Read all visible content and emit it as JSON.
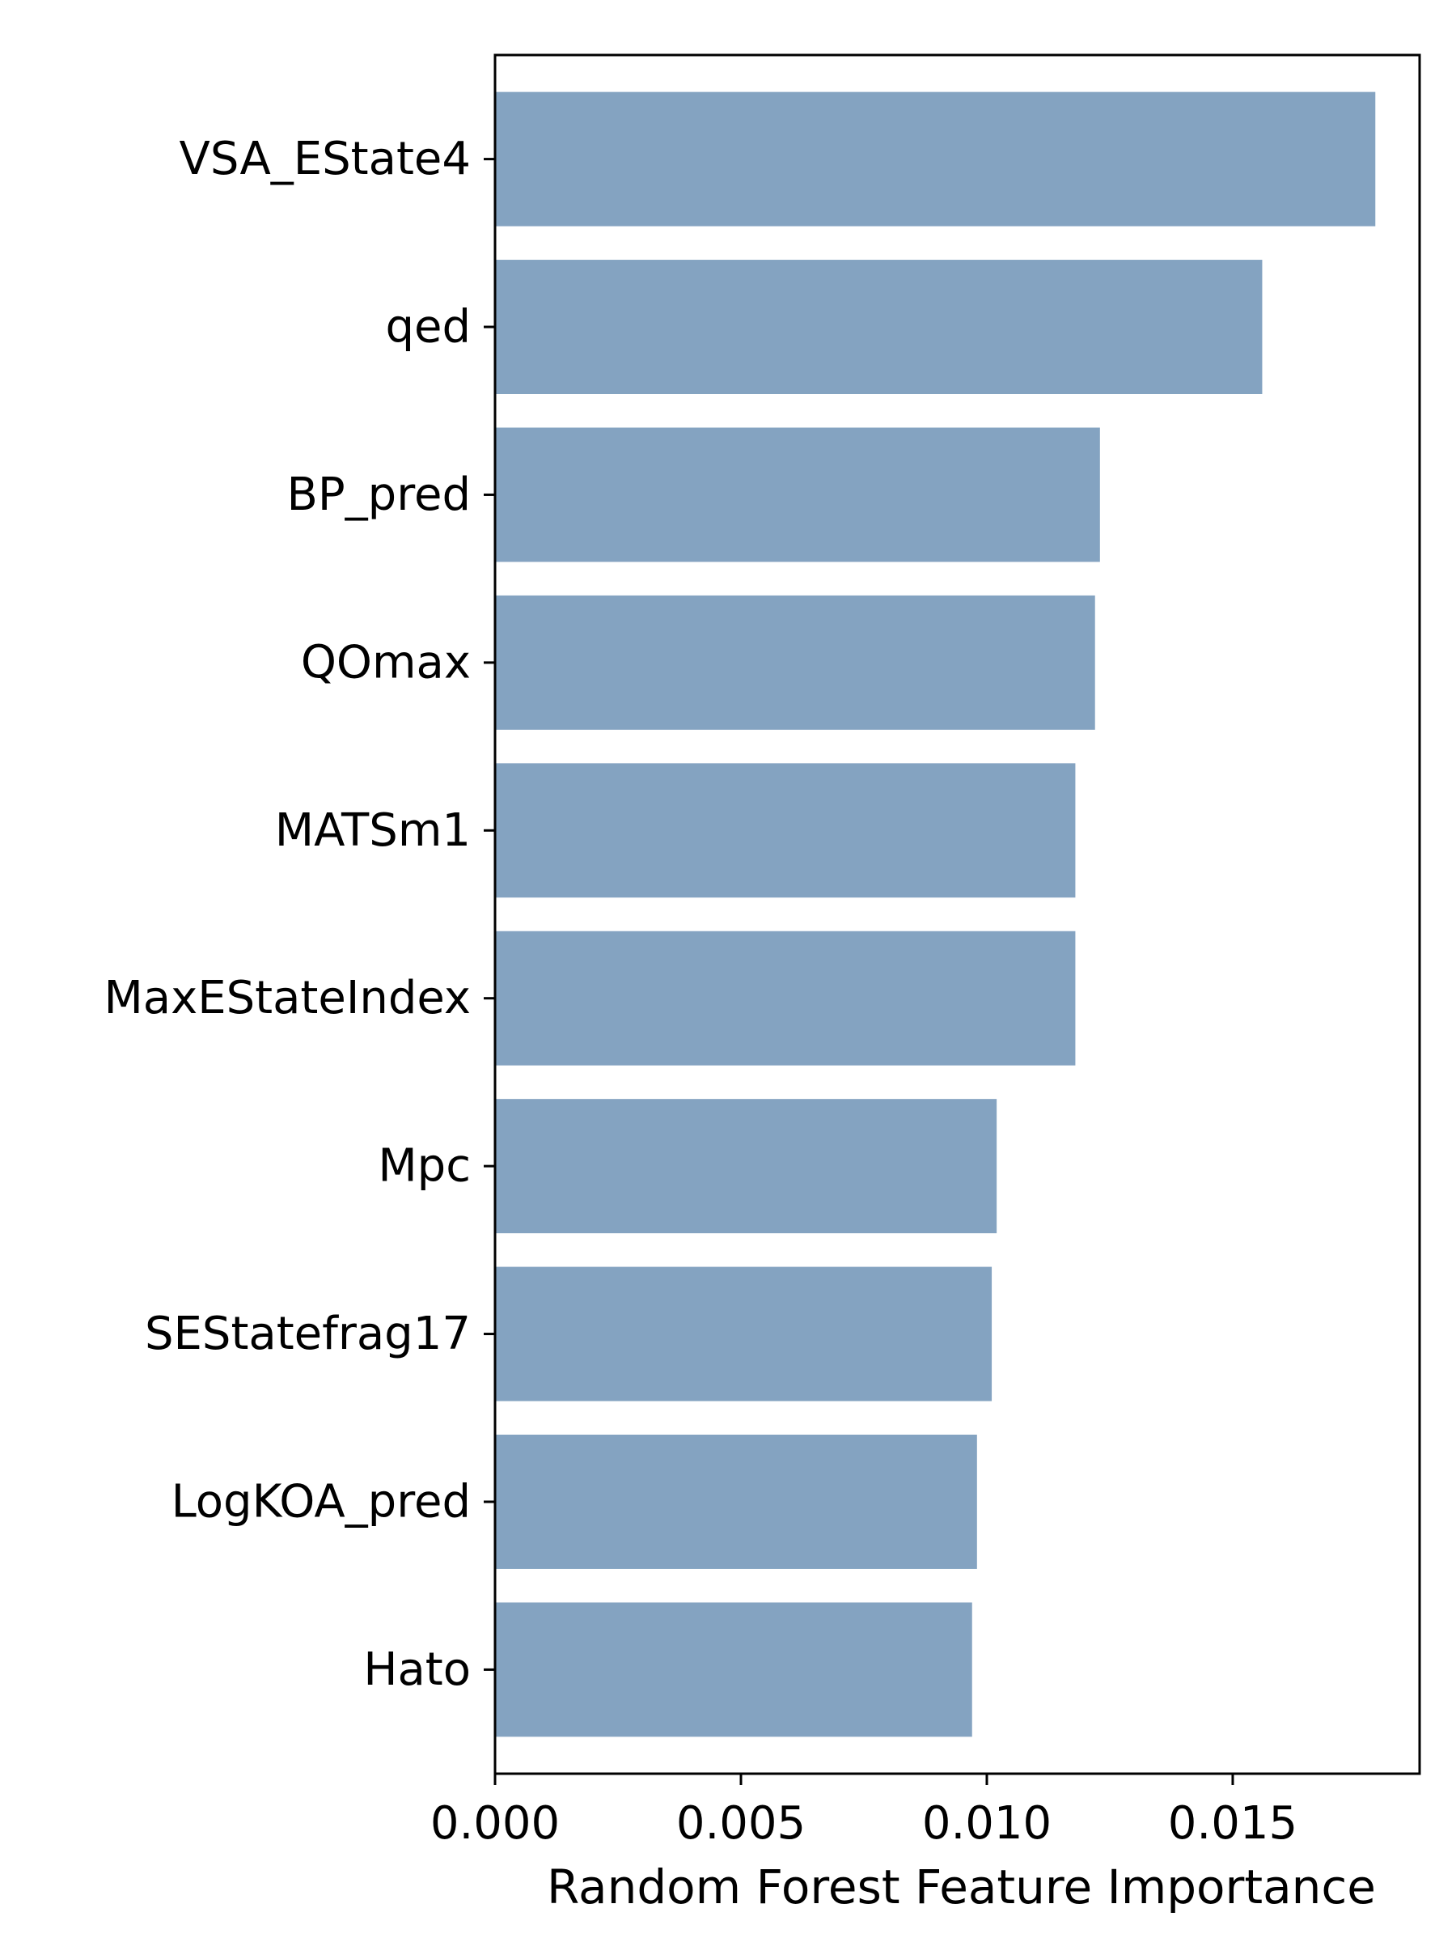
{
  "chart_data": {
    "type": "bar",
    "orientation": "horizontal",
    "title": "",
    "xlabel": "Random Forest Feature Importance",
    "ylabel": "",
    "categories": [
      "VSA_EState4",
      "qed",
      "BP_pred",
      "QOmax",
      "MATSm1",
      "MaxEStateIndex",
      "Mpc",
      "SEStatefrag17",
      "LogKOA_pred",
      "Hato"
    ],
    "values": [
      0.0179,
      0.0156,
      0.0123,
      0.0122,
      0.0118,
      0.0118,
      0.0102,
      0.0101,
      0.0098,
      0.0097
    ],
    "xlim": [
      0,
      0.0188
    ],
    "xticks": [
      0.0,
      0.005,
      0.01,
      0.015
    ],
    "xtick_labels": [
      "0.000",
      "0.005",
      "0.010",
      "0.015"
    ],
    "bar_color": "#84a3c1",
    "grid": false,
    "legend": "none"
  }
}
